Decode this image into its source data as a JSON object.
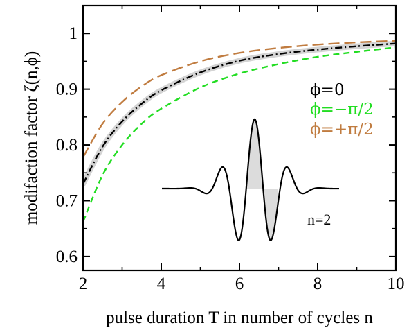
{
  "chart_data": {
    "type": "line",
    "xlabel": "pulse duration T in number of cycles n",
    "ylabel": "modifaction factor ζ(n,ϕ)",
    "xlim": [
      2,
      10
    ],
    "ylim": [
      0.575,
      1.05
    ],
    "xticks": [
      "2",
      "4",
      "6",
      "8",
      "10"
    ],
    "yticks": [
      "0.6",
      "0.7",
      "0.8",
      "0.9",
      "1"
    ],
    "x": [
      2,
      2.5,
      3,
      3.5,
      4,
      5,
      6,
      7,
      8,
      9,
      10
    ],
    "series": [
      {
        "name": "ϕ=0",
        "color": "#000000",
        "style": "dash-dot",
        "y": [
          0.73,
          0.797,
          0.842,
          0.874,
          0.898,
          0.93,
          0.951,
          0.963,
          0.971,
          0.977,
          0.982
        ]
      },
      {
        "name": "ϕ=−π/2",
        "color": "#22dd22",
        "style": "dashed",
        "y": [
          0.662,
          0.746,
          0.8,
          0.838,
          0.865,
          0.903,
          0.928,
          0.945,
          0.958,
          0.967,
          0.975
        ]
      },
      {
        "name": "ϕ=+π/2",
        "color": "#c07c40",
        "style": "long-dashed",
        "y": [
          0.778,
          0.838,
          0.877,
          0.905,
          0.925,
          0.95,
          0.965,
          0.974,
          0.98,
          0.984,
          0.987
        ]
      }
    ],
    "legend": {
      "position": "right",
      "entries": [
        "ϕ=0",
        "ϕ=−π/2",
        "ϕ=+π/2"
      ]
    },
    "inset": {
      "label": "n=2",
      "description_shape": "few-cycle pulse waveform"
    },
    "grid": false
  }
}
